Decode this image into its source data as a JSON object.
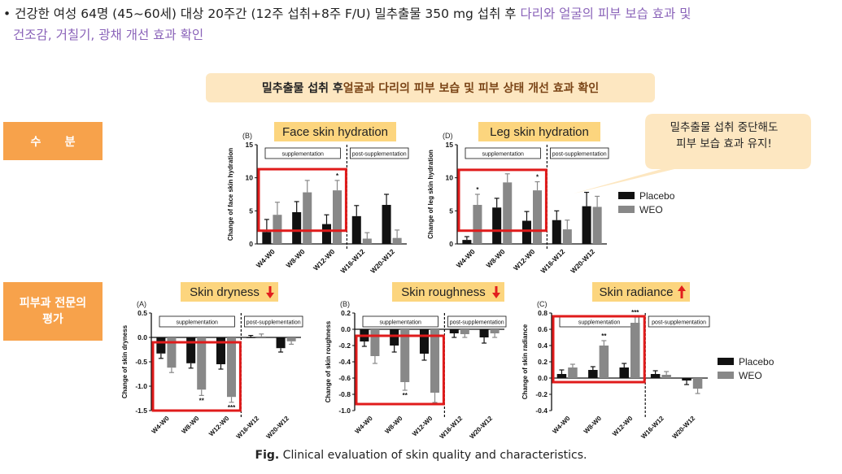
{
  "headline": {
    "bullet": "•",
    "line1_plain": "건강한 여성 64명 (45~60세) 대상 20주간 (12주 섭취+8주 F/U) 밀추출물 350 mg 섭취 후 ",
    "line1_highlight": "다리와 얼굴의 피부 보습 효과 및",
    "line2_highlight": "건조감, 거칠기, 광채 개선 효과 확인"
  },
  "banner": {
    "plain": "밀추출물 섭취 후 ",
    "highlight": "얼굴과 다리의 피부 보습 및 피부 상태 개선 효과 확인"
  },
  "side_labels": {
    "moisture": "수      분",
    "expert_line1": "피부과 전문의",
    "expert_line2": "평가"
  },
  "callout": {
    "line1": "밀추출물 섭취 중단해도",
    "line2": "피부 보습 효과 유지!"
  },
  "legend_top": {
    "placebo": "Placebo",
    "weo": "WEO"
  },
  "legend_bottom": {
    "placebo": "Placebo",
    "weo": "WEO"
  },
  "caption": {
    "bold": "Fig.",
    "text": " Clinical evaluation of skin quality and characteristics."
  },
  "colors": {
    "placebo": "#111111",
    "weo": "#888888",
    "highlight_box": "#e01b1b",
    "title_bg": "#fcd57e",
    "side_bg": "#f7a24b",
    "arrow": "#e21e1e"
  },
  "chart_data": [
    {
      "id": "face",
      "type": "bar",
      "panel": "(B)",
      "title": "Face skin hydration",
      "ylabel": "Change of face skin hydration",
      "categories": [
        "W4-W0",
        "W8-W0",
        "W12-W0",
        "W16-W12",
        "W20-W12"
      ],
      "yticks": [
        "0",
        "5",
        "10",
        "15"
      ],
      "ylim": [
        0,
        15
      ],
      "series": [
        {
          "name": "Placebo",
          "values": [
            1.8,
            4.8,
            3.0,
            4.2,
            5.9
          ],
          "errors": [
            1.9,
            1.6,
            1.4,
            1.6,
            1.6
          ]
        },
        {
          "name": "WEO",
          "values": [
            4.4,
            7.8,
            8.1,
            0.8,
            0.9
          ],
          "errors": [
            1.9,
            1.8,
            1.5,
            0.9,
            1.2
          ]
        }
      ],
      "significance": [
        {
          "category": "W12-W0",
          "series": "WEO",
          "label": "*"
        }
      ],
      "phase_labels": {
        "supplementation": "supplementation",
        "post": "post-supplementation"
      },
      "highlight": "W4-W0 to W12-W0"
    },
    {
      "id": "leg",
      "type": "bar",
      "panel": "(D)",
      "title": "Leg skin hydration",
      "ylabel": "Change of leg skin hydration",
      "categories": [
        "W4-W0",
        "W8-W0",
        "W12-W0",
        "W16-W12",
        "W20-W12"
      ],
      "yticks": [
        "0",
        "5",
        "10",
        "15"
      ],
      "ylim": [
        0,
        15
      ],
      "series": [
        {
          "name": "Placebo",
          "values": [
            0.6,
            5.5,
            3.5,
            3.6,
            5.7
          ],
          "errors": [
            0.5,
            1.4,
            1.4,
            1.4,
            2.1
          ]
        },
        {
          "name": "WEO",
          "values": [
            5.9,
            9.3,
            8.1,
            2.2,
            5.6
          ],
          "errors": [
            1.6,
            1.3,
            1.3,
            1.4,
            1.6
          ]
        }
      ],
      "significance": [
        {
          "category": "W4-W0",
          "series": "WEO",
          "label": "*"
        },
        {
          "category": "W12-W0",
          "series": "WEO",
          "label": "*"
        }
      ],
      "phase_labels": {
        "supplementation": "supplementation",
        "post": "post-supplementation"
      },
      "highlight": "W4-W0 to W12-W0"
    },
    {
      "id": "dryness",
      "type": "bar",
      "panel": "(A)",
      "title": "Skin dryness",
      "title_arrow": "down",
      "ylabel": "Change of skin dryness",
      "categories": [
        "W4-W0",
        "W8-W0",
        "W12-W0",
        "W16-W12",
        "W20-W12"
      ],
      "yticks": [
        "0.5",
        "0.0",
        "-0.5",
        "-1.0",
        "-1.5"
      ],
      "ylim": [
        -1.5,
        0.5
      ],
      "series": [
        {
          "name": "Placebo",
          "values": [
            -0.33,
            -0.53,
            -0.55,
            0.0,
            -0.22
          ],
          "errors": [
            0.1,
            0.1,
            0.1,
            0.04,
            0.08
          ]
        },
        {
          "name": "WEO",
          "values": [
            -0.62,
            -1.07,
            -1.22,
            0.02,
            -0.08
          ],
          "errors": [
            0.1,
            0.12,
            0.11,
            0.05,
            0.06
          ]
        }
      ],
      "significance": [
        {
          "category": "W8-W0",
          "series": "WEO",
          "label": "**"
        },
        {
          "category": "W12-W0",
          "series": "WEO",
          "label": "***"
        }
      ],
      "phase_labels": {
        "supplementation": "supplementation",
        "post": "post-supplementation"
      },
      "highlight": "W4-W0 to W12-W0"
    },
    {
      "id": "roughness",
      "type": "bar",
      "panel": "(B)",
      "title": "Skin roughness",
      "title_arrow": "down",
      "ylabel": "Change of skin roughness",
      "categories": [
        "W4-W0",
        "W8-W0",
        "W12-W0",
        "W16-W12",
        "W20-W12"
      ],
      "yticks": [
        "0.2",
        "0.0",
        "-0.2",
        "-0.4",
        "-0.6",
        "-0.8",
        "-1.0"
      ],
      "ylim": [
        -1.0,
        0.2
      ],
      "series": [
        {
          "name": "Placebo",
          "values": [
            -0.15,
            -0.2,
            -0.3,
            -0.05,
            -0.1
          ],
          "errors": [
            0.06,
            0.08,
            0.08,
            0.05,
            0.07
          ]
        },
        {
          "name": "WEO",
          "values": [
            -0.33,
            -0.65,
            -0.78,
            -0.06,
            -0.05
          ],
          "errors": [
            0.09,
            0.1,
            0.12,
            0.04,
            0.05
          ]
        }
      ],
      "significance": [
        {
          "category": "W8-W0",
          "series": "WEO",
          "label": "**"
        }
      ],
      "phase_labels": {
        "supplementation": "supplementation",
        "post": "post-supplementation"
      },
      "highlight": "W4-W0 to W12-W0"
    },
    {
      "id": "radiance",
      "type": "bar",
      "panel": "(C)",
      "title": "Skin radiance",
      "title_arrow": "up",
      "ylabel": "Change of skin radiance",
      "categories": [
        "W4-W0",
        "W8-W0",
        "W12-W0",
        "W16-W12",
        "W20-W12"
      ],
      "yticks": [
        "0.8",
        "0.6",
        "0.4",
        "0.2",
        "0.0",
        "-0.2",
        "-0.4"
      ],
      "ylim": [
        -0.4,
        0.8
      ],
      "series": [
        {
          "name": "Placebo",
          "values": [
            0.05,
            0.1,
            0.13,
            0.05,
            -0.03
          ],
          "errors": [
            0.05,
            0.04,
            0.05,
            0.04,
            0.05
          ]
        },
        {
          "name": "WEO",
          "values": [
            0.13,
            0.4,
            0.68,
            0.04,
            -0.13
          ],
          "errors": [
            0.04,
            0.06,
            0.07,
            0.04,
            0.06
          ]
        }
      ],
      "significance": [
        {
          "category": "W8-W0",
          "series": "WEO",
          "label": "**"
        },
        {
          "category": "W12-W0",
          "series": "WEO",
          "label": "***"
        }
      ],
      "phase_labels": {
        "supplementation": "supplementation",
        "post": "post-supplementation"
      },
      "highlight": "W4-W0 to W12-W0"
    }
  ]
}
